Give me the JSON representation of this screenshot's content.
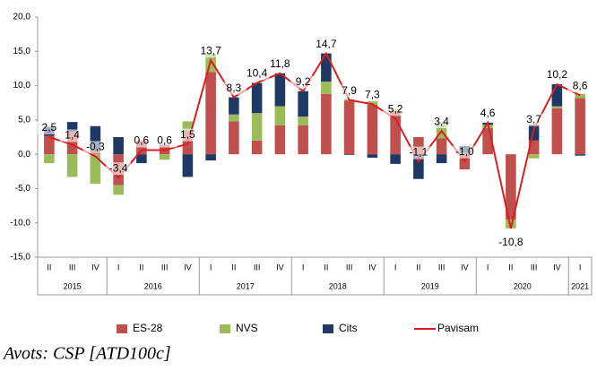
{
  "chart_data": {
    "type": "bar_line",
    "categories": [
      "II",
      "III",
      "IV",
      "I",
      "II",
      "III",
      "IV",
      "I",
      "II",
      "III",
      "IV",
      "I",
      "II",
      "III",
      "IV",
      "I",
      "II",
      "III",
      "IV",
      "I",
      "II",
      "III",
      "IV",
      "I"
    ],
    "year_categories": [
      "2015",
      null,
      null,
      "2016",
      null,
      null,
      null,
      "2017",
      null,
      null,
      null,
      "2018",
      null,
      null,
      null,
      "2019",
      null,
      null,
      null,
      "2020",
      null,
      null,
      null,
      "2021"
    ],
    "series": [
      {
        "name": "ES-28",
        "color": "#c0504d",
        "kind": "bar",
        "values": [
          2.7,
          3.3,
          0.5,
          -4.5,
          2.0,
          1.4,
          3.5,
          12.0,
          4.8,
          2.0,
          4.2,
          4.2,
          8.8,
          7.8,
          7.2,
          6.3,
          2.5,
          2.3,
          -2.2,
          3.8,
          -9.5,
          2.0,
          6.7,
          8.2
        ]
      },
      {
        "name": "NVS",
        "color": "#9bbb59",
        "kind": "bar",
        "values": [
          -1.3,
          -3.3,
          -4.3,
          -1.4,
          0.0,
          -0.8,
          1.3,
          2.6,
          1.0,
          4.0,
          2.8,
          1.3,
          1.8,
          0.2,
          0.6,
          0.3,
          0.0,
          2.4,
          0.2,
          0.5,
          -1.3,
          -0.6,
          0.3,
          0.6
        ]
      },
      {
        "name": "Cits",
        "color": "#1f3864",
        "kind": "bar",
        "values": [
          1.3,
          1.4,
          3.6,
          2.5,
          -1.3,
          0.0,
          -3.3,
          -0.9,
          2.5,
          4.4,
          4.8,
          3.7,
          4.1,
          -0.1,
          -0.5,
          -1.4,
          -3.6,
          -1.3,
          1.0,
          0.3,
          0.0,
          2.3,
          3.2,
          -0.2
        ]
      },
      {
        "name": "Pavisam",
        "color": "#d62020",
        "kind": "line",
        "values": [
          2.5,
          1.4,
          -0.3,
          -3.4,
          0.6,
          0.6,
          1.5,
          13.7,
          8.3,
          10.4,
          11.8,
          9.2,
          14.7,
          7.9,
          7.3,
          5.2,
          -1.1,
          3.4,
          -1.0,
          4.6,
          -10.8,
          3.7,
          10.2,
          8.6
        ],
        "value_labels": [
          "2,5",
          "1,4",
          "-0,3",
          "-3,4",
          "0,6",
          "0,6",
          "1,5",
          "13,7",
          "8,3",
          "10,4",
          "11,8",
          "9,2",
          "14,7",
          "7,9",
          "7,3",
          "5,2",
          "-1,1",
          "3,4",
          "-1,0",
          "4,6",
          "-10,8",
          "3,7",
          "10,2",
          "8,6"
        ]
      }
    ],
    "ylim": [
      -15,
      20
    ],
    "yticks": [
      {
        "value": -15,
        "label": "-15,0"
      },
      {
        "value": -10,
        "label": "-10,0"
      },
      {
        "value": -5,
        "label": "-5,0"
      },
      {
        "value": 0,
        "label": "0,0"
      },
      {
        "value": 5,
        "label": "5,0"
      },
      {
        "value": 10,
        "label": "10,0"
      },
      {
        "value": 15,
        "label": "15,0"
      },
      {
        "value": 20,
        "label": "20,0"
      }
    ],
    "legend": "bottom",
    "caption": "Avots: CSP [ATD100c]"
  }
}
